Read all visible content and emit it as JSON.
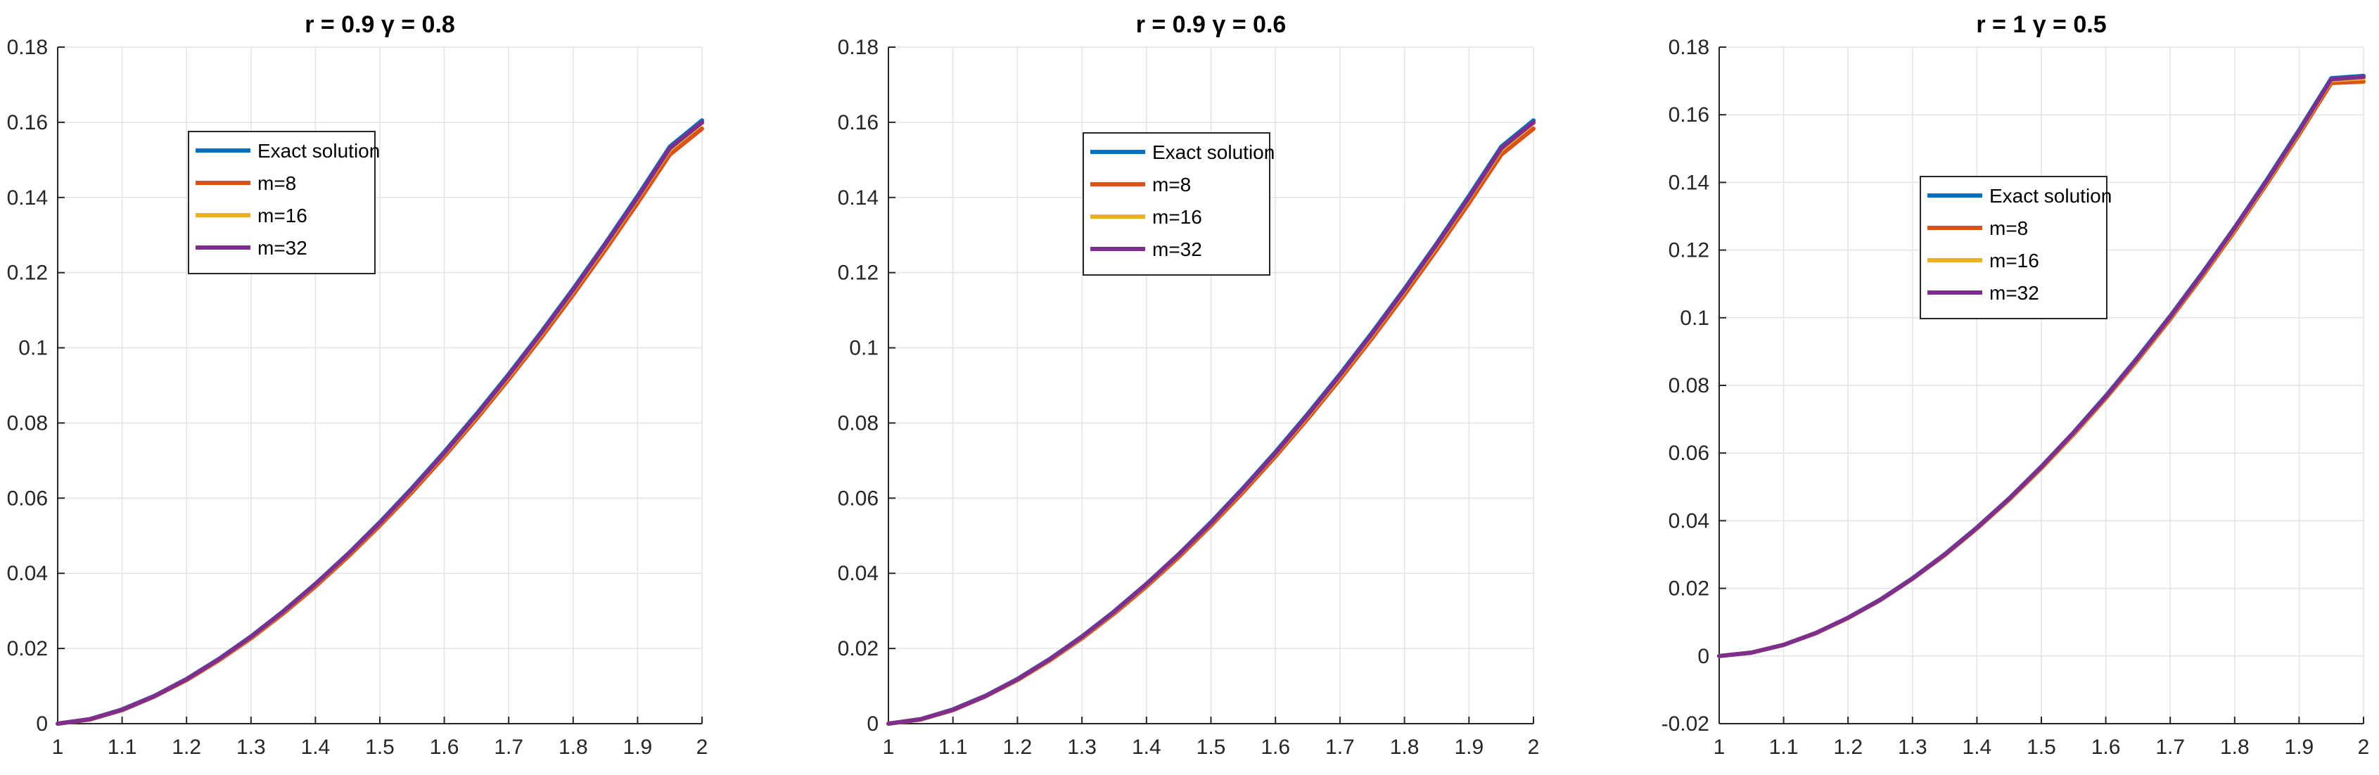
{
  "chart_data": [
    {
      "type": "line",
      "title": "r = 0.9 γ = 0.8",
      "xlabel": "",
      "ylabel": "",
      "xlim": [
        1,
        2
      ],
      "ylim": [
        0,
        0.18
      ],
      "xticks": [
        "1",
        "1.1",
        "1.2",
        "1.3",
        "1.4",
        "1.5",
        "1.6",
        "1.7",
        "1.8",
        "1.9",
        "2"
      ],
      "yticks": [
        "0",
        "0.02",
        "0.04",
        "0.06",
        "0.08",
        "0.1",
        "0.12",
        "0.14",
        "0.16",
        "0.18"
      ],
      "grid": true,
      "legend": "upper-left",
      "x": [
        1,
        1.05,
        1.1,
        1.15,
        1.2,
        1.25,
        1.3,
        1.35,
        1.4,
        1.45,
        1.5,
        1.55,
        1.6,
        1.65,
        1.7,
        1.75,
        1.8,
        1.85,
        1.9,
        1.95,
        2
      ],
      "series": [
        {
          "name": "Exact solution",
          "color": "#0072BD",
          "values": [
            0,
            0.0012,
            0.0038,
            0.0074,
            0.0119,
            0.0172,
            0.0232,
            0.0299,
            0.0372,
            0.0451,
            0.0536,
            0.0627,
            0.0723,
            0.0824,
            0.093,
            0.1041,
            0.1157,
            0.1278,
            0.1404,
            0.1535,
            0.1605
          ]
        },
        {
          "name": "m=8",
          "color": "#D95319",
          "values": [
            0,
            0.0011,
            0.0036,
            0.0072,
            0.0116,
            0.0168,
            0.0227,
            0.0293,
            0.0365,
            0.0443,
            0.0527,
            0.0616,
            0.0711,
            0.0811,
            0.0916,
            0.1026,
            0.1141,
            0.1261,
            0.1385,
            0.1514,
            0.1583
          ]
        },
        {
          "name": "m=16",
          "color": "#EDB120",
          "values": [
            0,
            0.0012,
            0.0037,
            0.0073,
            0.0118,
            0.017,
            0.023,
            0.0297,
            0.037,
            0.0449,
            0.0533,
            0.0623,
            0.0718,
            0.0818,
            0.0924,
            0.1035,
            0.1151,
            0.1271,
            0.1397,
            0.1527,
            0.1598
          ]
        },
        {
          "name": "m=32",
          "color": "#7E2F8E",
          "values": [
            0,
            0.0012,
            0.0037,
            0.0073,
            0.0118,
            0.0171,
            0.0231,
            0.0298,
            0.0371,
            0.045,
            0.0534,
            0.0625,
            0.072,
            0.0821,
            0.0927,
            0.1038,
            0.1154,
            0.1275,
            0.14,
            0.1531,
            0.16
          ]
        }
      ]
    },
    {
      "type": "line",
      "title": "r = 0.9 γ = 0.6",
      "xlabel": "",
      "ylabel": "",
      "xlim": [
        1,
        2
      ],
      "ylim": [
        0,
        0.18
      ],
      "xticks": [
        "1",
        "1.1",
        "1.2",
        "1.3",
        "1.4",
        "1.5",
        "1.6",
        "1.7",
        "1.8",
        "1.9",
        "2"
      ],
      "yticks": [
        "0",
        "0.02",
        "0.04",
        "0.06",
        "0.08",
        "0.1",
        "0.12",
        "0.14",
        "0.16",
        "0.18"
      ],
      "grid": true,
      "legend": "upper-center",
      "x": [
        1,
        1.05,
        1.1,
        1.15,
        1.2,
        1.25,
        1.3,
        1.35,
        1.4,
        1.45,
        1.5,
        1.55,
        1.6,
        1.65,
        1.7,
        1.75,
        1.8,
        1.85,
        1.9,
        1.95,
        2
      ],
      "series": [
        {
          "name": "Exact solution",
          "color": "#0072BD",
          "values": [
            0,
            0.0012,
            0.0038,
            0.0074,
            0.0119,
            0.0172,
            0.0232,
            0.0299,
            0.0372,
            0.0451,
            0.0536,
            0.0627,
            0.0723,
            0.0824,
            0.093,
            0.1041,
            0.1157,
            0.1278,
            0.1404,
            0.1535,
            0.1605
          ]
        },
        {
          "name": "m=8",
          "color": "#D95319",
          "values": [
            0,
            0.0011,
            0.0036,
            0.0072,
            0.0116,
            0.0168,
            0.0227,
            0.0293,
            0.0365,
            0.0443,
            0.0527,
            0.0616,
            0.0711,
            0.0811,
            0.0916,
            0.1026,
            0.1141,
            0.1261,
            0.1385,
            0.1514,
            0.1583
          ]
        },
        {
          "name": "m=16",
          "color": "#EDB120",
          "values": [
            0,
            0.0012,
            0.0037,
            0.0073,
            0.0118,
            0.017,
            0.023,
            0.0297,
            0.037,
            0.0449,
            0.0533,
            0.0623,
            0.0718,
            0.0818,
            0.0924,
            0.1035,
            0.1151,
            0.1271,
            0.1397,
            0.1527,
            0.1598
          ]
        },
        {
          "name": "m=32",
          "color": "#7E2F8E",
          "values": [
            0,
            0.0012,
            0.0037,
            0.0073,
            0.0118,
            0.0171,
            0.0231,
            0.0298,
            0.0371,
            0.045,
            0.0534,
            0.0625,
            0.072,
            0.0821,
            0.0927,
            0.1038,
            0.1154,
            0.1275,
            0.14,
            0.1531,
            0.16
          ]
        }
      ]
    },
    {
      "type": "line",
      "title": "r = 1 γ = 0.5",
      "xlabel": "",
      "ylabel": "",
      "xlim": [
        1,
        2
      ],
      "ylim": [
        -0.02,
        0.18
      ],
      "xticks": [
        "1",
        "1.1",
        "1.2",
        "1.3",
        "1.4",
        "1.5",
        "1.6",
        "1.7",
        "1.8",
        "1.9",
        "2"
      ],
      "yticks": [
        "-0.02",
        "0",
        "0.02",
        "0.04",
        "0.06",
        "0.08",
        "0.1",
        "0.12",
        "0.14",
        "0.16",
        "0.18"
      ],
      "grid": true,
      "legend": "upper-center",
      "x": [
        1,
        1.05,
        1.1,
        1.15,
        1.2,
        1.25,
        1.3,
        1.35,
        1.4,
        1.45,
        1.5,
        1.55,
        1.6,
        1.65,
        1.7,
        1.75,
        1.8,
        1.85,
        1.9,
        1.95,
        2
      ],
      "series": [
        {
          "name": "Exact solution",
          "color": "#0072BD",
          "values": [
            0,
            0.001,
            0.0033,
            0.0068,
            0.0113,
            0.0167,
            0.023,
            0.0301,
            0.038,
            0.0466,
            0.056,
            0.0661,
            0.0769,
            0.0884,
            0.1005,
            0.1133,
            0.1267,
            0.1408,
            0.1555,
            0.1708,
            0.1715
          ]
        },
        {
          "name": "m=8",
          "color": "#D95319",
          "values": [
            0,
            0.001,
            0.0033,
            0.0067,
            0.0112,
            0.0165,
            0.0228,
            0.0298,
            0.0377,
            0.0462,
            0.0555,
            0.0655,
            0.0762,
            0.0876,
            0.0996,
            0.1123,
            0.1256,
            0.1396,
            0.1542,
            0.1694,
            0.1698
          ]
        },
        {
          "name": "m=16",
          "color": "#EDB120",
          "values": [
            0,
            0.001,
            0.0033,
            0.0068,
            0.0112,
            0.0166,
            0.0229,
            0.03,
            0.0379,
            0.0464,
            0.0558,
            0.0658,
            0.0766,
            0.088,
            0.1001,
            0.1129,
            0.1262,
            0.1402,
            0.1549,
            0.1702,
            0.1708
          ]
        },
        {
          "name": "m=32",
          "color": "#7E2F8E",
          "values": [
            0,
            0.001,
            0.0033,
            0.0068,
            0.0113,
            0.0166,
            0.0229,
            0.03,
            0.0379,
            0.0465,
            0.0559,
            0.066,
            0.0767,
            0.0882,
            0.1003,
            0.1131,
            0.1265,
            0.1405,
            0.1552,
            0.1705,
            0.1712
          ]
        }
      ]
    }
  ]
}
